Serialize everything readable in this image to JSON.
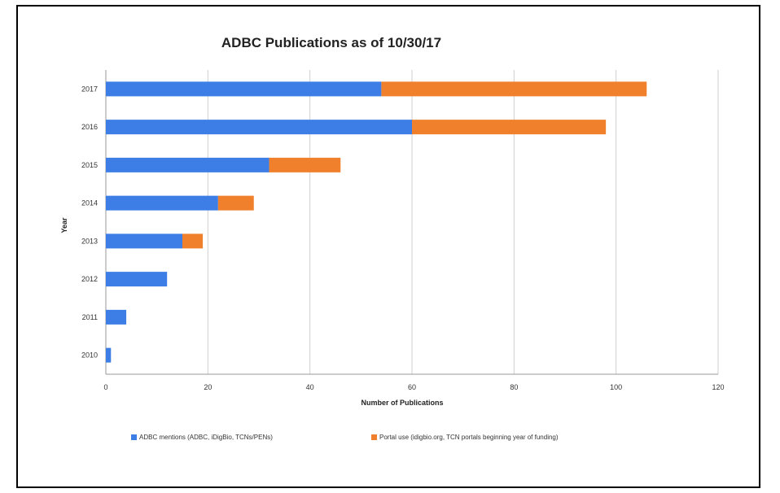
{
  "chart_data": {
    "type": "bar",
    "orientation": "horizontal",
    "stacked": true,
    "title": "ADBC Publications as of 10/30/17",
    "xlabel": "Number of Publications",
    "ylabel": "Year",
    "categories": [
      "2017",
      "2016",
      "2015",
      "2014",
      "2013",
      "2012",
      "2011",
      "2010"
    ],
    "series": [
      {
        "name": "ADBC mentions (ADBC, iDigBio, TCNs/PENs)",
        "color": "#3d7ee6",
        "values": [
          54,
          60,
          32,
          22,
          15,
          12,
          4,
          1
        ]
      },
      {
        "name": "Portal use (idigbio.org, TCN portals beginning year of funding)",
        "color": "#f0802c",
        "values": [
          52,
          38,
          14,
          7,
          4,
          0,
          0,
          0
        ]
      }
    ],
    "xlim": [
      0,
      120
    ],
    "xticks": [
      "0",
      "20",
      "40",
      "60",
      "80",
      "100",
      "120"
    ],
    "grid": true,
    "legend_position": "bottom"
  }
}
